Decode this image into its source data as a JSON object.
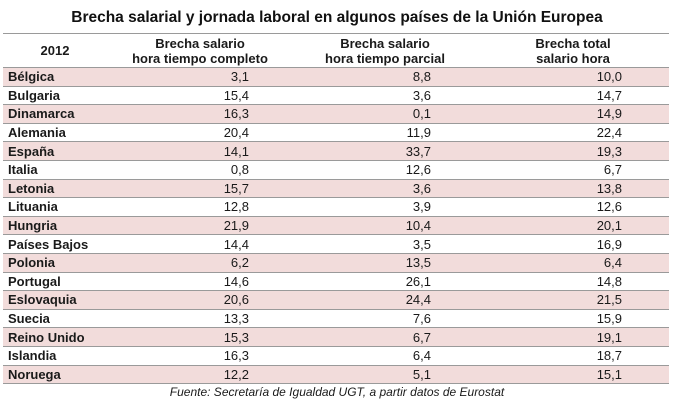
{
  "title": "Brecha salarial y jornada laboral en algunos países de la Unión Europea",
  "table": {
    "headers": {
      "year": "2012",
      "col1_line1": "Brecha salario",
      "col1_line2": "hora tiempo completo",
      "col2_line1": "Brecha salario",
      "col2_line2": "hora tiempo parcial",
      "col3_line1": "Brecha total",
      "col3_line2": "salario hora"
    },
    "rows": [
      {
        "country": "Bélgica",
        "full_time": "3,1",
        "part_time": "8,8",
        "total": "10,0"
      },
      {
        "country": "Bulgaria",
        "full_time": "15,4",
        "part_time": "3,6",
        "total": "14,7"
      },
      {
        "country": "Dinamarca",
        "full_time": "16,3",
        "part_time": "0,1",
        "total": "14,9"
      },
      {
        "country": "Alemania",
        "full_time": "20,4",
        "part_time": "11,9",
        "total": "22,4"
      },
      {
        "country": "España",
        "full_time": "14,1",
        "part_time": "33,7",
        "total": "19,3"
      },
      {
        "country": "Italia",
        "full_time": "0,8",
        "part_time": "12,6",
        "total": "6,7"
      },
      {
        "country": "Letonia",
        "full_time": "15,7",
        "part_time": "3,6",
        "total": "13,8"
      },
      {
        "country": "Lituania",
        "full_time": "12,8",
        "part_time": "3,9",
        "total": "12,6"
      },
      {
        "country": "Hungria",
        "full_time": "21,9",
        "part_time": "10,4",
        "total": "20,1"
      },
      {
        "country": "Países Bajos",
        "full_time": "14,4",
        "part_time": "3,5",
        "total": "16,9"
      },
      {
        "country": "Polonia",
        "full_time": "6,2",
        "part_time": "13,5",
        "total": "6,4"
      },
      {
        "country": "Portugal",
        "full_time": "14,6",
        "part_time": "26,1",
        "total": "14,8"
      },
      {
        "country": "Eslovaquia",
        "full_time": "20,6",
        "part_time": "24,4",
        "total": "21,5"
      },
      {
        "country": "Suecia",
        "full_time": "13,3",
        "part_time": "7,6",
        "total": "15,9"
      },
      {
        "country": "Reino Unido",
        "full_time": "15,3",
        "part_time": "6,7",
        "total": "19,1"
      },
      {
        "country": "Islandia",
        "full_time": "16,3",
        "part_time": "6,4",
        "total": "18,7"
      },
      {
        "country": "Noruega",
        "full_time": "12,2",
        "part_time": "5,1",
        "total": "15,1"
      }
    ]
  },
  "source": "Fuente: Secretaría de Igualdad UGT, a partir datos de Eurostat",
  "colors": {
    "stripe": "#f2dcdb",
    "border": "#9a9a9a"
  }
}
